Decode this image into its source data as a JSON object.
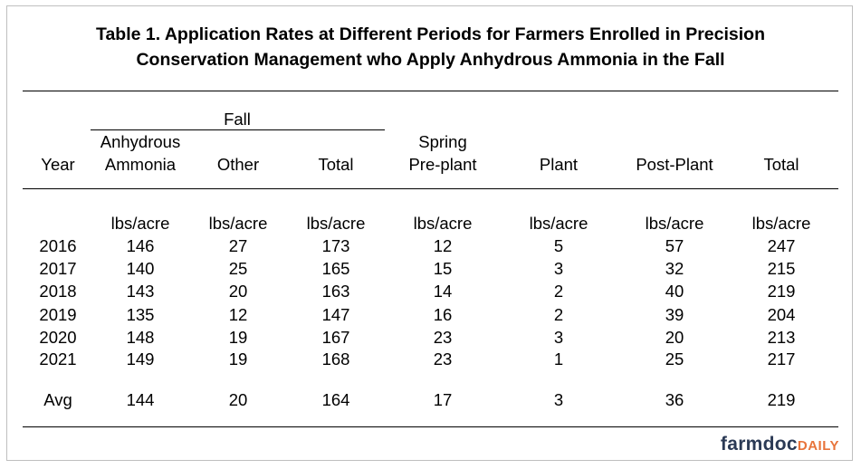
{
  "title": {
    "line1": "Table 1. Application Rates at Different Periods for Farmers Enrolled in Precision",
    "line2": "Conservation Management who Apply Anhydrous Ammonia in the Fall"
  },
  "header": {
    "fall_group": "Fall",
    "columns": [
      {
        "line1": "",
        "line2": "Year"
      },
      {
        "line1": "Anhydrous",
        "line2": "Ammonia"
      },
      {
        "line1": "",
        "line2": "Other"
      },
      {
        "line1": "",
        "line2": "Total"
      },
      {
        "line1": "Spring",
        "line2": "Pre-plant"
      },
      {
        "line1": "",
        "line2": "Plant"
      },
      {
        "line1": "",
        "line2": "Post-Plant"
      },
      {
        "line1": "",
        "line2": "Total"
      }
    ]
  },
  "units": [
    "",
    "lbs/acre",
    "lbs/acre",
    "lbs/acre",
    "lbs/acre",
    "lbs/acre",
    "lbs/acre",
    "lbs/acre"
  ],
  "rows": [
    [
      "2016",
      "146",
      "27",
      "173",
      "12",
      "5",
      "57",
      "247"
    ],
    [
      "2017",
      "140",
      "25",
      "165",
      "15",
      "3",
      "32",
      "215"
    ],
    [
      "2018",
      "143",
      "20",
      "163",
      "14",
      "2",
      "40",
      "219"
    ],
    [
      "2019",
      "135",
      "12",
      "147",
      "16",
      "2",
      "39",
      "204"
    ],
    [
      "2020",
      "148",
      "19",
      "167",
      "23",
      "3",
      "20",
      "213"
    ],
    [
      "2021",
      "149",
      "19",
      "168",
      "23",
      "1",
      "25",
      "217"
    ]
  ],
  "avg": [
    "Avg",
    "144",
    "20",
    "164",
    "17",
    "3",
    "36",
    "219"
  ],
  "logo": {
    "part1": "farmdoc",
    "part2": "DAILY",
    "color1": "#2b3a55",
    "color2": "#e8743b"
  }
}
